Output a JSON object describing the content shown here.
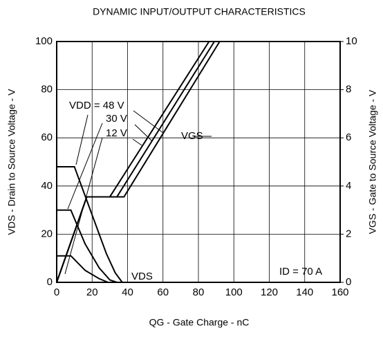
{
  "chart_data": {
    "type": "line",
    "title": "DYNAMIC INPUT/OUTPUT CHARACTERISTICS",
    "xlabel": "QG - Gate Charge - nC",
    "ylabel": "VDS - Drain to Source Voltage - V",
    "y2label": "VGS - Gate to Source Voltage - V",
    "xlim": [
      0,
      160
    ],
    "xticks": [
      0,
      20,
      40,
      60,
      80,
      100,
      120,
      140,
      160
    ],
    "ylim": [
      0,
      100
    ],
    "yticks": [
      0,
      20,
      40,
      60,
      80,
      100
    ],
    "y2lim": [
      0,
      10
    ],
    "y2ticks": [
      0,
      2,
      4,
      6,
      8,
      10
    ],
    "grid": true,
    "series": [
      {
        "name": "VDD = 48 V",
        "color": "#000000",
        "x": [
          0,
          10,
          20,
          28,
          33,
          37
        ],
        "values": [
          48,
          48,
          28,
          12,
          4,
          0
        ]
      },
      {
        "name": "30 V",
        "color": "#000000",
        "x": [
          0,
          8,
          16,
          24,
          30,
          34
        ],
        "values": [
          30,
          30,
          16,
          6,
          1,
          0
        ]
      },
      {
        "name": "12 V",
        "color": "#000000",
        "x": [
          0,
          8,
          16,
          24,
          29
        ],
        "values": [
          11,
          11,
          5,
          1.5,
          0
        ]
      },
      {
        "color": "#000000",
        "axis": "y2",
        "x": [
          0,
          17,
          38,
          92
        ],
        "values": [
          0,
          3.55,
          3.55,
          10
        ]
      },
      {
        "color": "#000000",
        "axis": "y2",
        "x": [
          0,
          17,
          34,
          89
        ],
        "values": [
          0,
          3.55,
          3.55,
          10
        ]
      },
      {
        "color": "#000000",
        "axis": "y2",
        "x": [
          0,
          17,
          30,
          86
        ],
        "values": [
          0,
          3.55,
          3.55,
          10
        ]
      }
    ],
    "annotations": [
      "VGS",
      "VDS",
      "ID = 70 A"
    ]
  }
}
